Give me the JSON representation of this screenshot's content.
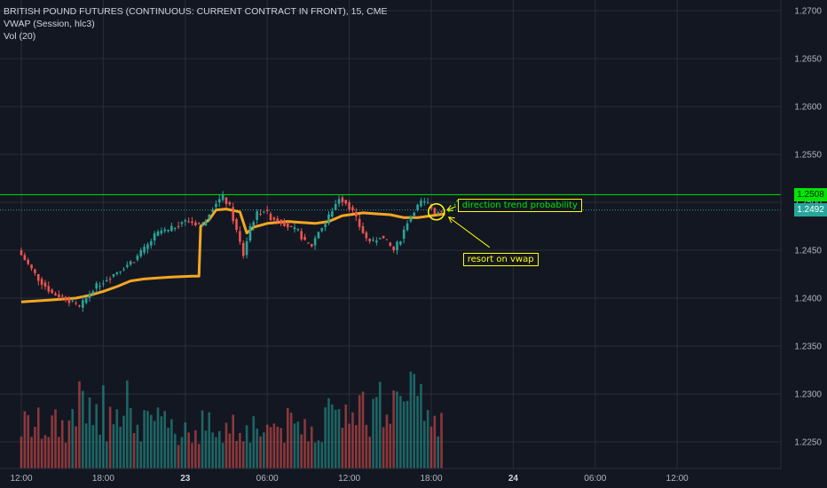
{
  "legend": {
    "title": "BRITISH POUND FUTURES (CONTINUOUS: CURRENT CONTRACT IN FRONT), 15, CME",
    "vwap": "VWAP (Session, hlc3)",
    "vol": "Vol (20)"
  },
  "colors": {
    "background": "#131722",
    "grid": "#2a2e39",
    "up": "#26a69a",
    "down": "#ef5350",
    "vwap": "#f5a623",
    "resistance": "#00e600",
    "price_line": "#26a69a",
    "annotation": "#ffff00"
  },
  "annotations": {
    "direction": "direction trend probability",
    "resort": "resort on vwap"
  },
  "price_tags": {
    "top": "1.2508",
    "current": "1.2492"
  },
  "chart_data": {
    "type": "candlestick",
    "title": "BRITISH POUND FUTURES (CONTINUOUS: CURRENT CONTRACT IN FRONT), 15, CME",
    "y_ticks": [
      "1.2700",
      "1.2650",
      "1.2600",
      "1.2550",
      "1.2500",
      "1.2450",
      "1.2400",
      "1.2350",
      "1.2300",
      "1.2250"
    ],
    "x_ticks": [
      "12:00",
      "18:00",
      "23",
      "06:00",
      "12:00",
      "18:00",
      "24",
      "06:00",
      "12:00"
    ],
    "ylim": [
      1.2235,
      1.2715
    ],
    "horizontal_lines": [
      {
        "price": 1.2508,
        "label": "1.2508",
        "style": "solid"
      },
      {
        "price": 1.2492,
        "label": "1.2492",
        "style": "dotted"
      }
    ],
    "price_path": [
      [
        0,
        1.245
      ],
      [
        6,
        1.242
      ],
      [
        10,
        1.2405
      ],
      [
        14,
        1.24
      ],
      [
        18,
        1.239
      ],
      [
        22,
        1.241
      ],
      [
        26,
        1.242
      ],
      [
        30,
        1.243
      ],
      [
        34,
        1.244
      ],
      [
        38,
        1.2455
      ],
      [
        40,
        1.2465
      ],
      [
        42,
        1.247
      ],
      [
        44,
        1.247
      ],
      [
        46,
        1.2475
      ],
      [
        48,
        1.248
      ],
      [
        50,
        1.248
      ],
      [
        52,
        1.2478
      ],
      [
        54,
        1.2476
      ],
      [
        56,
        1.249
      ],
      [
        58,
        1.25
      ],
      [
        60,
        1.2505
      ],
      [
        62,
        1.2495
      ],
      [
        64,
        1.247
      ],
      [
        66,
        1.2445
      ],
      [
        68,
        1.2475
      ],
      [
        70,
        1.2488
      ],
      [
        72,
        1.2492
      ],
      [
        74,
        1.2484
      ],
      [
        76,
        1.2482
      ],
      [
        78,
        1.2478
      ],
      [
        80,
        1.2472
      ],
      [
        82,
        1.247
      ],
      [
        84,
        1.2458
      ],
      [
        86,
        1.2455
      ],
      [
        88,
        1.247
      ],
      [
        90,
        1.2478
      ],
      [
        92,
        1.2492
      ],
      [
        94,
        1.2505
      ],
      [
        96,
        1.25
      ],
      [
        98,
        1.249
      ],
      [
        100,
        1.2475
      ],
      [
        102,
        1.2462
      ],
      [
        104,
        1.2458
      ],
      [
        106,
        1.2465
      ],
      [
        108,
        1.2458
      ],
      [
        110,
        1.245
      ],
      [
        112,
        1.2462
      ],
      [
        114,
        1.248
      ],
      [
        116,
        1.2492
      ],
      [
        118,
        1.25
      ],
      [
        120,
        1.2498
      ],
      [
        122,
        1.249
      ],
      [
        124,
        1.2492
      ]
    ],
    "vwap": [
      [
        0,
        1.2396
      ],
      [
        8,
        1.2398
      ],
      [
        16,
        1.24
      ],
      [
        20,
        1.2403
      ],
      [
        24,
        1.2407
      ],
      [
        28,
        1.2412
      ],
      [
        32,
        1.2418
      ],
      [
        36,
        1.242
      ],
      [
        40,
        1.2421
      ],
      [
        44,
        1.2422
      ],
      [
        50,
        1.2423
      ],
      [
        52,
        1.2423
      ],
      [
        52.5,
        1.2475
      ],
      [
        55,
        1.2482
      ],
      [
        57,
        1.2492
      ],
      [
        60,
        1.2493
      ],
      [
        64,
        1.249
      ],
      [
        66,
        1.2468
      ],
      [
        68,
        1.2474
      ],
      [
        72,
        1.2478
      ],
      [
        78,
        1.248
      ],
      [
        82,
        1.2479
      ],
      [
        86,
        1.2478
      ],
      [
        90,
        1.248
      ],
      [
        94,
        1.2486
      ],
      [
        98,
        1.2488
      ],
      [
        100,
        1.2489
      ],
      [
        104,
        1.2488
      ],
      [
        108,
        1.2487
      ],
      [
        112,
        1.2484
      ],
      [
        116,
        1.2484
      ],
      [
        120,
        1.2486
      ],
      [
        124,
        1.2488
      ]
    ],
    "projection": [
      [
        125,
        1.249
      ],
      [
        126.5,
        1.2495
      ],
      [
        128,
        1.2504
      ]
    ],
    "circle_at": [
      121.5,
      1.249
    ]
  }
}
